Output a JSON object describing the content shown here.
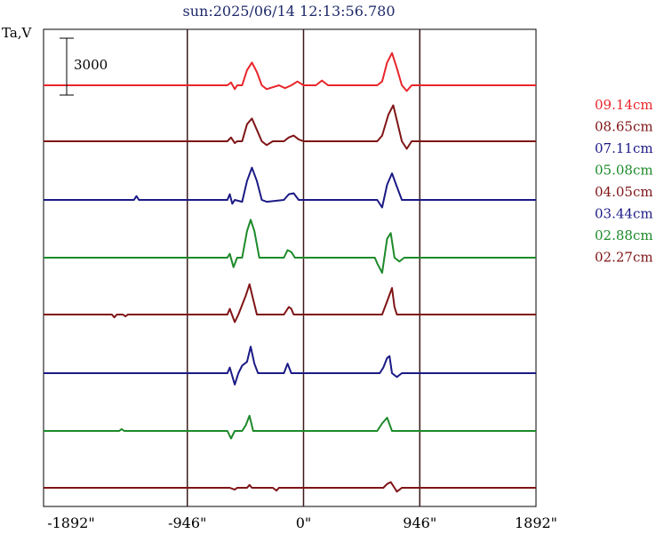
{
  "chart_data": {
    "type": "line",
    "title": "sun:2025/06/14 12:13:56.780",
    "ylabel": "Ta,V",
    "scale_bar_label": "3000",
    "xlim": [
      -2116,
      1892
    ],
    "x_ticks": [
      -1892,
      -946,
      0,
      946,
      1892
    ],
    "x_tick_labels": [
      "-1892\"",
      "-946\"",
      "0\"",
      "946\"",
      "1892\""
    ],
    "vlines": [
      -946,
      0,
      946
    ],
    "series": [
      {
        "name": "09.14cm",
        "color": "#e8262b"
      },
      {
        "name": "08.65cm",
        "color": "#7f1416"
      },
      {
        "name": "07.11cm",
        "color": "#1b1a86"
      },
      {
        "name": "05.08cm",
        "color": "#1d8a2a"
      },
      {
        "name": "04.05cm",
        "color": "#7f1416"
      },
      {
        "name": "03.44cm",
        "color": "#1b1a86"
      },
      {
        "name": "02.88cm",
        "color": "#1d8a2a"
      },
      {
        "name": "02.27cm",
        "color": "#7f1416"
      }
    ],
    "profiles": [
      {
        "baseline": 0,
        "points": [
          [
            -2116,
            0
          ],
          [
            -970,
            0
          ],
          [
            -620,
            0
          ],
          [
            -590,
            150
          ],
          [
            -560,
            -200
          ],
          [
            -540,
            0
          ],
          [
            -500,
            0
          ],
          [
            -460,
            800
          ],
          [
            -420,
            1200
          ],
          [
            -380,
            700
          ],
          [
            -340,
            0
          ],
          [
            -300,
            -200
          ],
          [
            -200,
            0
          ],
          [
            -150,
            -150
          ],
          [
            -100,
            0
          ],
          [
            -50,
            200
          ],
          [
            0,
            0
          ],
          [
            100,
            0
          ],
          [
            150,
            250
          ],
          [
            200,
            0
          ],
          [
            600,
            0
          ],
          [
            640,
            200
          ],
          [
            680,
            1200
          ],
          [
            720,
            1700
          ],
          [
            760,
            900
          ],
          [
            800,
            0
          ],
          [
            840,
            -300
          ],
          [
            880,
            0
          ],
          [
            1892,
            0
          ]
        ]
      },
      {
        "baseline": 0,
        "points": [
          [
            -2116,
            0
          ],
          [
            -620,
            0
          ],
          [
            -590,
            200
          ],
          [
            -560,
            -100
          ],
          [
            -540,
            0
          ],
          [
            -500,
            0
          ],
          [
            -460,
            900
          ],
          [
            -420,
            1200
          ],
          [
            -380,
            600
          ],
          [
            -340,
            0
          ],
          [
            -300,
            -200
          ],
          [
            -250,
            0
          ],
          [
            -160,
            0
          ],
          [
            -120,
            200
          ],
          [
            -80,
            300
          ],
          [
            -40,
            100
          ],
          [
            0,
            0
          ],
          [
            600,
            0
          ],
          [
            640,
            300
          ],
          [
            690,
            1400
          ],
          [
            730,
            1900
          ],
          [
            760,
            1100
          ],
          [
            800,
            0
          ],
          [
            840,
            -400
          ],
          [
            880,
            0
          ],
          [
            1892,
            0
          ]
        ]
      },
      {
        "baseline": 0,
        "points": [
          [
            -2116,
            0
          ],
          [
            -1380,
            0
          ],
          [
            -1360,
            200
          ],
          [
            -1340,
            0
          ],
          [
            -620,
            0
          ],
          [
            -600,
            300
          ],
          [
            -580,
            -200
          ],
          [
            -560,
            0
          ],
          [
            -500,
            -100
          ],
          [
            -460,
            1000
          ],
          [
            -420,
            1700
          ],
          [
            -380,
            1000
          ],
          [
            -340,
            0
          ],
          [
            -300,
            -100
          ],
          [
            -160,
            0
          ],
          [
            -120,
            300
          ],
          [
            -80,
            350
          ],
          [
            -40,
            0
          ],
          [
            0,
            0
          ],
          [
            600,
            0
          ],
          [
            640,
            -400
          ],
          [
            680,
            800
          ],
          [
            720,
            1400
          ],
          [
            760,
            700
          ],
          [
            800,
            0
          ],
          [
            1892,
            0
          ]
        ]
      },
      {
        "baseline": 0,
        "points": [
          [
            -2116,
            0
          ],
          [
            -620,
            0
          ],
          [
            -600,
            200
          ],
          [
            -570,
            -500
          ],
          [
            -540,
            0
          ],
          [
            -500,
            0
          ],
          [
            -460,
            1400
          ],
          [
            -430,
            2000
          ],
          [
            -400,
            1400
          ],
          [
            -360,
            0
          ],
          [
            -300,
            0
          ],
          [
            -160,
            0
          ],
          [
            -130,
            400
          ],
          [
            -100,
            300
          ],
          [
            -70,
            0
          ],
          [
            0,
            0
          ],
          [
            580,
            0
          ],
          [
            600,
            -300
          ],
          [
            640,
            -800
          ],
          [
            680,
            1000
          ],
          [
            710,
            1300
          ],
          [
            740,
            0
          ],
          [
            780,
            -200
          ],
          [
            820,
            0
          ],
          [
            1892,
            0
          ]
        ]
      },
      {
        "baseline": 0,
        "points": [
          [
            -2116,
            0
          ],
          [
            -1560,
            0
          ],
          [
            -1540,
            -150
          ],
          [
            -1520,
            0
          ],
          [
            -1470,
            0
          ],
          [
            -1450,
            -100
          ],
          [
            -1430,
            0
          ],
          [
            -650,
            0
          ],
          [
            -620,
            0
          ],
          [
            -600,
            300
          ],
          [
            -560,
            -400
          ],
          [
            -530,
            0
          ],
          [
            -500,
            500
          ],
          [
            -470,
            1000
          ],
          [
            -440,
            1600
          ],
          [
            -410,
            800
          ],
          [
            -380,
            0
          ],
          [
            -160,
            0
          ],
          [
            -120,
            400
          ],
          [
            -100,
            300
          ],
          [
            -80,
            0
          ],
          [
            0,
            0
          ],
          [
            640,
            0
          ],
          [
            680,
            700
          ],
          [
            720,
            1400
          ],
          [
            740,
            400
          ],
          [
            760,
            0
          ],
          [
            1892,
            0
          ]
        ]
      },
      {
        "baseline": 0,
        "points": [
          [
            -2116,
            0
          ],
          [
            -620,
            0
          ],
          [
            -600,
            300
          ],
          [
            -560,
            -600
          ],
          [
            -530,
            0
          ],
          [
            -500,
            400
          ],
          [
            -460,
            600
          ],
          [
            -430,
            1400
          ],
          [
            -400,
            500
          ],
          [
            -370,
            0
          ],
          [
            -160,
            0
          ],
          [
            -130,
            500
          ],
          [
            -100,
            0
          ],
          [
            0,
            0
          ],
          [
            620,
            0
          ],
          [
            650,
            300
          ],
          [
            680,
            800
          ],
          [
            700,
            900
          ],
          [
            720,
            0
          ],
          [
            760,
            -200
          ],
          [
            800,
            0
          ],
          [
            1892,
            0
          ]
        ]
      },
      {
        "baseline": 0,
        "points": [
          [
            -2116,
            0
          ],
          [
            -1500,
            0
          ],
          [
            -1480,
            100
          ],
          [
            -1460,
            0
          ],
          [
            -620,
            0
          ],
          [
            -590,
            -400
          ],
          [
            -560,
            0
          ],
          [
            -500,
            0
          ],
          [
            -470,
            300
          ],
          [
            -440,
            800
          ],
          [
            -410,
            0
          ],
          [
            -380,
            0
          ],
          [
            0,
            0
          ],
          [
            600,
            0
          ],
          [
            640,
            400
          ],
          [
            680,
            700
          ],
          [
            720,
            0
          ],
          [
            800,
            0
          ],
          [
            1892,
            0
          ]
        ]
      },
      {
        "baseline": 0,
        "points": [
          [
            -2116,
            0
          ],
          [
            -600,
            0
          ],
          [
            -560,
            -100
          ],
          [
            -540,
            0
          ],
          [
            -460,
            0
          ],
          [
            -440,
            150
          ],
          [
            -420,
            0
          ],
          [
            -250,
            0
          ],
          [
            -220,
            -150
          ],
          [
            -200,
            0
          ],
          [
            650,
            0
          ],
          [
            680,
            200
          ],
          [
            710,
            300
          ],
          [
            740,
            0
          ],
          [
            760,
            -200
          ],
          [
            800,
            0
          ],
          [
            1892,
            0
          ]
        ]
      }
    ]
  }
}
